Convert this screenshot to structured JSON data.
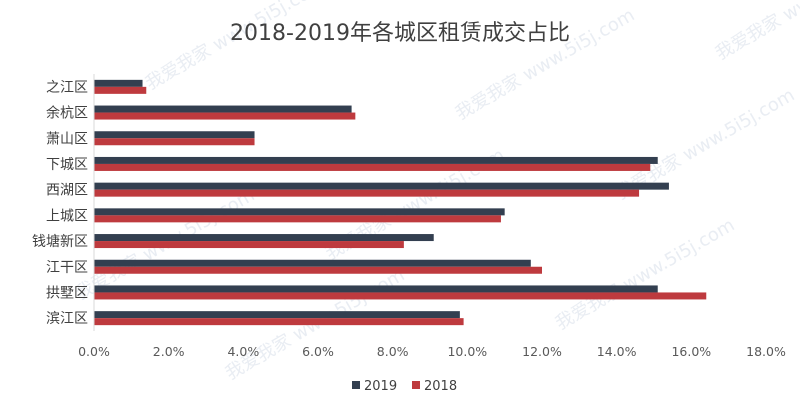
{
  "chart_data": {
    "type": "bar",
    "orientation": "horizontal",
    "title": "2018-2019年各城区租赁成交占比",
    "categories": [
      "之江区",
      "余杭区",
      "萧山区",
      "下城区",
      "西湖区",
      "上城区",
      "钱塘新区",
      "江干区",
      "拱墅区",
      "滨江区"
    ],
    "series": [
      {
        "name": "2019",
        "color": "#333f50",
        "values": [
          1.3,
          6.9,
          4.3,
          15.1,
          15.4,
          11.0,
          9.1,
          11.7,
          15.1,
          9.8
        ]
      },
      {
        "name": "2018",
        "color": "#be3a3e",
        "values": [
          1.4,
          7.0,
          4.3,
          14.9,
          14.6,
          10.9,
          8.3,
          12.0,
          16.4,
          9.9
        ]
      }
    ],
    "xlim": [
      0,
      18
    ],
    "x_ticks": [
      "0.0%",
      "2.0%",
      "4.0%",
      "6.0%",
      "8.0%",
      "10.0%",
      "12.0%",
      "14.0%",
      "16.0%",
      "18.0%"
    ],
    "grid": false,
    "legend_position": "bottom",
    "xlabel": "",
    "ylabel": ""
  },
  "watermark": "我爱我家 www.5i5j.com"
}
